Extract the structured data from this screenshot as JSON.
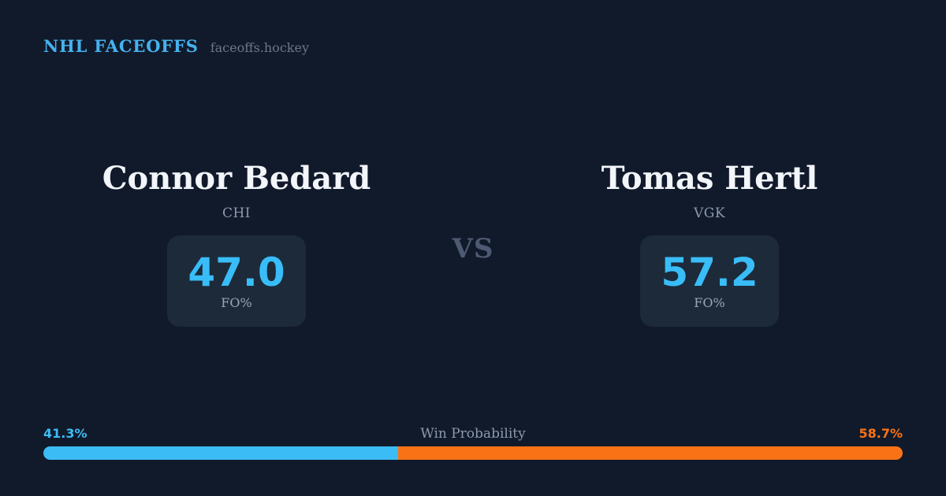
{
  "header": {
    "brand": "NHL FACEOFFS",
    "site": "faceoffs.hockey"
  },
  "matchup": {
    "vs_label": "VS",
    "players": [
      {
        "name": "Connor Bedard",
        "team": "CHI",
        "stat_value": "47.0",
        "stat_label": "FO%"
      },
      {
        "name": "Tomas Hertl",
        "team": "VGK",
        "stat_value": "57.2",
        "stat_label": "FO%"
      }
    ]
  },
  "win_probability": {
    "title": "Win Probability",
    "left_pct_label": "41.3%",
    "right_pct_label": "58.7%",
    "left_value": 41.3,
    "right_value": 58.7
  },
  "colors": {
    "background": "#111a2b",
    "stat_card_background": "#1d2a3a",
    "accent_blue": "#3cbcf5",
    "brand_blue": "#45b2ee",
    "accent_orange": "#f97316",
    "text_primary": "#f2f5f9",
    "text_muted": "#8b99ad",
    "vs_text": "#4d5a72"
  }
}
